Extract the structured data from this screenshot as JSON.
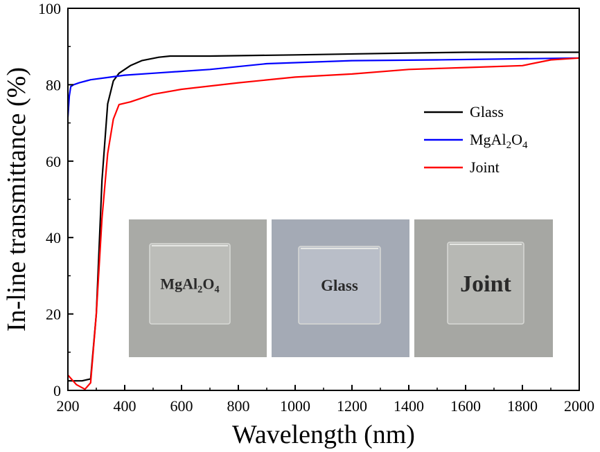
{
  "chart_data": {
    "type": "line",
    "xlabel": "Wavelength (nm)",
    "ylabel": "In-line transmittance (%)",
    "xlim": [
      200,
      2000
    ],
    "ylim": [
      0,
      100
    ],
    "xticks": [
      200,
      400,
      600,
      800,
      1000,
      1200,
      1400,
      1600,
      1800,
      2000
    ],
    "yticks": [
      0,
      20,
      40,
      60,
      80,
      100
    ],
    "grid": false,
    "legend_position": "right",
    "series": [
      {
        "name": "Glass",
        "color": "#000000",
        "x": [
          200,
          250,
          280,
          300,
          320,
          340,
          360,
          380,
          420,
          460,
          520,
          560,
          700,
          1000,
          1400,
          1600,
          2000
        ],
        "y": [
          2.5,
          2.5,
          3,
          20,
          55,
          75,
          81,
          83,
          85,
          86.3,
          87.2,
          87.5,
          87.5,
          87.8,
          88.3,
          88.5,
          88.5
        ]
      },
      {
        "name": "MgAl2O4",
        "legend_parts": [
          "MgAl",
          "2",
          "O",
          "4"
        ],
        "color": "#0000ff",
        "x": [
          200,
          205,
          210,
          220,
          240,
          280,
          350,
          400,
          500,
          700,
          900,
          1200,
          1500,
          1800,
          2000
        ],
        "y": [
          71.5,
          77,
          79.5,
          80,
          80.5,
          81.3,
          82,
          82.5,
          83,
          84,
          85.5,
          86.3,
          86.5,
          86.8,
          87
        ]
      },
      {
        "name": "Joint",
        "color": "#ff0000",
        "x": [
          200,
          230,
          260,
          280,
          300,
          320,
          340,
          360,
          380,
          420,
          500,
          600,
          800,
          1000,
          1200,
          1400,
          1600,
          1800,
          1900,
          2000
        ],
        "y": [
          4,
          1.5,
          0.3,
          2,
          20,
          45,
          62,
          71,
          74.8,
          75.5,
          77.5,
          78.8,
          80.5,
          82,
          82.8,
          84,
          84.5,
          85,
          86.5,
          87
        ]
      }
    ]
  },
  "inset": {
    "panels": [
      {
        "label_parts": [
          "MgAl",
          "2",
          "O",
          "4"
        ],
        "background": "#a9aaa6",
        "plate": "#bcbdb9"
      },
      {
        "label_parts": [
          "Glass"
        ],
        "background": "#a4aab5",
        "plate": "#b9bec8"
      },
      {
        "label_parts": [
          "Joint"
        ],
        "background": "#a6a7a3",
        "plate": "#b7b8b4"
      }
    ]
  }
}
